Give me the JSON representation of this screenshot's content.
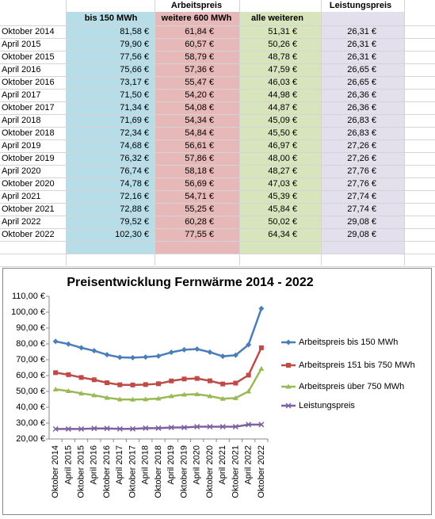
{
  "table": {
    "header": {
      "group": "Arbeitspreis",
      "extra": "Leistungspreis",
      "columns": [
        "bis 150 MWh",
        "weitere 600 MWh",
        "alle weiteren"
      ]
    },
    "rows": [
      [
        "Oktober 2014",
        "81,58 €",
        "61,84 €",
        "51,31 €",
        "26,31 €"
      ],
      [
        "April 2015",
        "79,90 €",
        "60,57 €",
        "50,26 €",
        "26,31 €"
      ],
      [
        "Oktober 2015",
        "77,56 €",
        "58,79 €",
        "48,78 €",
        "26,31 €"
      ],
      [
        "April 2016",
        "75,66 €",
        "57,36 €",
        "47,59 €",
        "26,65 €"
      ],
      [
        "Oktober 2016",
        "73,17 €",
        "55,47 €",
        "46,03 €",
        "26,65 €"
      ],
      [
        "April 2017",
        "71,50 €",
        "54,20 €",
        "44,98 €",
        "26,36 €"
      ],
      [
        "Oktober 2017",
        "71,34 €",
        "54,08 €",
        "44,87 €",
        "26,36 €"
      ],
      [
        "April 2018",
        "71,69 €",
        "54,34 €",
        "45,09 €",
        "26,83 €"
      ],
      [
        "Oktober 2018",
        "72,34 €",
        "54,84 €",
        "45,50 €",
        "26,83 €"
      ],
      [
        "April 2019",
        "74,68 €",
        "56,61 €",
        "46,97 €",
        "27,26 €"
      ],
      [
        "Oktober 2019",
        "76,32 €",
        "57,86 €",
        "48,00 €",
        "27,26 €"
      ],
      [
        "April 2020",
        "76,74 €",
        "58,18 €",
        "48,27 €",
        "27,76 €"
      ],
      [
        "Oktober 2020",
        "74,78 €",
        "56,69 €",
        "47,03 €",
        "27,76 €"
      ],
      [
        "April 2021",
        "72,16 €",
        "54,71 €",
        "45,39 €",
        "27,74 €"
      ],
      [
        "Oktober 2021",
        "72,88 €",
        "55,25 €",
        "45,84 €",
        "27,74 €"
      ],
      [
        "April 2022",
        "79,52 €",
        "60,28 €",
        "50,02 €",
        "29,08 €"
      ],
      [
        "Oktober 2022",
        "102,30 €",
        "77,55 €",
        "64,34 €",
        "29,08 €"
      ]
    ],
    "column_colors": [
      "#b7dee8",
      "#e6b8b7",
      "#d8e4bc",
      "#e4dfec"
    ]
  },
  "chart_data": {
    "type": "line",
    "title": "Preisentwicklung Fernwärme 2014 - 2022",
    "categories": [
      "Oktober 2014",
      "April 2015",
      "Oktober 2015",
      "April 2016",
      "Oktober 2016",
      "April 2017",
      "Oktober 2017",
      "April 2018",
      "Oktober 2018",
      "April 2019",
      "Oktober 2019",
      "April 2020",
      "Oktober 2020",
      "April 2021",
      "Oktober 2021",
      "April 2022",
      "Oktober 2022"
    ],
    "series": [
      {
        "name": "Arbeitspreis bis 150 MWh",
        "color": "#4a7ebb",
        "marker": "diamond",
        "values": [
          81.58,
          79.9,
          77.56,
          75.66,
          73.17,
          71.5,
          71.34,
          71.69,
          72.34,
          74.68,
          76.32,
          76.74,
          74.78,
          72.16,
          72.88,
          79.52,
          102.3
        ]
      },
      {
        "name": "Arbeitspreis 151 bis 750 MWh",
        "color": "#be4b48",
        "marker": "square",
        "values": [
          61.84,
          60.57,
          58.79,
          57.36,
          55.47,
          54.2,
          54.08,
          54.34,
          54.84,
          56.61,
          57.86,
          58.18,
          56.69,
          54.71,
          55.25,
          60.28,
          77.55
        ]
      },
      {
        "name": "Arbeitspreis über 750 MWh",
        "color": "#98b954",
        "marker": "triangle",
        "values": [
          51.31,
          50.26,
          48.78,
          47.59,
          46.03,
          44.98,
          44.87,
          45.09,
          45.5,
          46.97,
          48.0,
          48.27,
          47.03,
          45.39,
          45.84,
          50.02,
          64.34
        ]
      },
      {
        "name": "Leistungspreis",
        "color": "#7d60a0",
        "marker": "x",
        "values": [
          26.31,
          26.31,
          26.31,
          26.65,
          26.65,
          26.36,
          26.36,
          26.83,
          26.83,
          27.26,
          27.26,
          27.76,
          27.76,
          27.74,
          27.74,
          29.08,
          29.08
        ]
      }
    ],
    "ylim": [
      20,
      110
    ],
    "yticks": [
      {
        "value": 20,
        "label": "20,00 €"
      },
      {
        "value": 30,
        "label": "30,00 €"
      },
      {
        "value": 40,
        "label": "40,00 €"
      },
      {
        "value": 50,
        "label": "50,00 €"
      },
      {
        "value": 60,
        "label": "60,00 €"
      },
      {
        "value": 70,
        "label": "70,00 €"
      },
      {
        "value": 80,
        "label": "80,00 €"
      },
      {
        "value": 90,
        "label": "90,00 €"
      },
      {
        "value": 100,
        "label": "100,00 €"
      },
      {
        "value": 110,
        "label": "110,00 €"
      }
    ],
    "grid": false,
    "legend": "right"
  }
}
